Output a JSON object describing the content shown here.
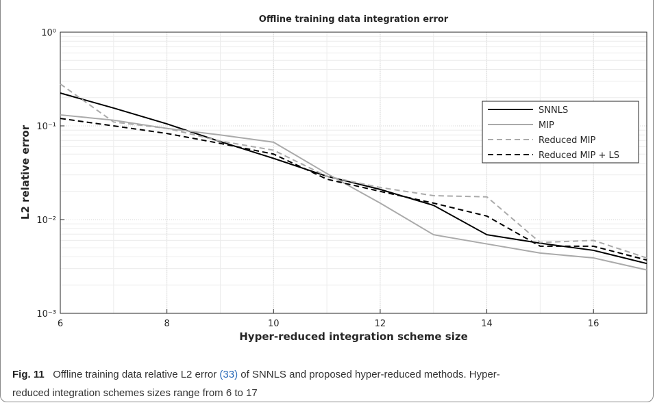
{
  "chart_data": {
    "type": "line",
    "title": "Offline training data integration error",
    "x_label": "Hyper-reduced integration scheme size",
    "y_label": "L2 relative error",
    "x": [
      6,
      7,
      8,
      9,
      10,
      11,
      12,
      13,
      14,
      15,
      16,
      17
    ],
    "series": [
      {
        "name": "SNNLS",
        "color": "#000000",
        "dash": "solid",
        "values": [
          0.224,
          0.155,
          0.105,
          0.068,
          0.045,
          0.029,
          0.021,
          0.0142,
          0.0069,
          0.0056,
          0.0047,
          0.0034
        ]
      },
      {
        "name": "MIP",
        "color": "#aaaaaa",
        "dash": "solid",
        "values": [
          0.131,
          0.115,
          0.094,
          0.08,
          0.067,
          0.031,
          0.015,
          0.0069,
          0.0055,
          0.0044,
          0.0039,
          0.0029
        ]
      },
      {
        "name": "Reduced MIP",
        "color": "#aaaaaa",
        "dash": "dashed",
        "values": [
          0.28,
          0.11,
          0.094,
          0.069,
          0.055,
          0.029,
          0.022,
          0.018,
          0.0175,
          0.0057,
          0.006,
          0.0039
        ]
      },
      {
        "name": "Reduced MIP + LS",
        "color": "#000000",
        "dash": "dashed",
        "values": [
          0.12,
          0.1,
          0.083,
          0.065,
          0.05,
          0.027,
          0.02,
          0.015,
          0.0109,
          0.0052,
          0.0052,
          0.0037
        ]
      }
    ],
    "xlim": [
      6,
      17
    ],
    "xticks": [
      6,
      8,
      10,
      12,
      14,
      16
    ],
    "ylim": [
      0.001,
      1
    ],
    "log_y": true,
    "yticks": [
      {
        "value": 0.001,
        "label": "10⁻³"
      },
      {
        "value": 0.01,
        "label": "10⁻²"
      },
      {
        "value": 0.1,
        "label": "10⁻¹"
      },
      {
        "value": 1,
        "label": "10⁰"
      }
    ],
    "grid": true,
    "legend": "upper right"
  },
  "caption": {
    "label": "Fig. 11",
    "text": [
      "Offline training data relative L2 error ",
      "(33)",
      " of SNNLS and proposed hyper-reduced methods. Hyper-reduced integration schemes sizes range from 6 to 17"
    ]
  }
}
